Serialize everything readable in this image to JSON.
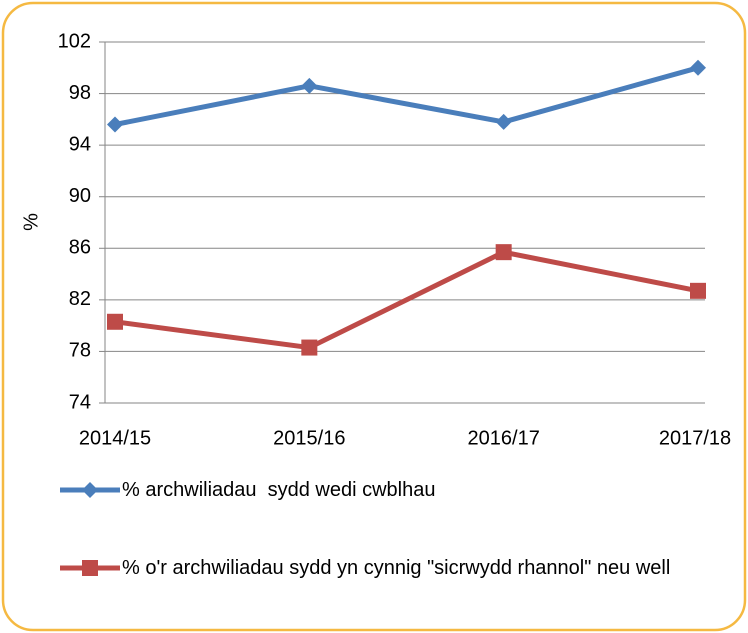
{
  "chart_data": {
    "type": "line",
    "categories": [
      "2014/15",
      "2015/16",
      "2016/17",
      "2017/18"
    ],
    "y_label": "%",
    "ylim": [
      74,
      102
    ],
    "yticks": [
      74,
      78,
      82,
      86,
      90,
      94,
      98,
      102
    ],
    "grid": true,
    "series": [
      {
        "name": "% archwiliadau  sydd wedi cwblhau",
        "color": "#4a7ebb",
        "marker": "diamond",
        "values": [
          95.6,
          98.6,
          95.8,
          100
        ]
      },
      {
        "name": "% o'r archwiliadau sydd yn cynnig \"sicrwydd rhannol\" neu well",
        "color": "#be4b48",
        "marker": "square",
        "values": [
          80.3,
          78.3,
          85.7,
          82.7
        ]
      }
    ],
    "legend": "bottom"
  }
}
